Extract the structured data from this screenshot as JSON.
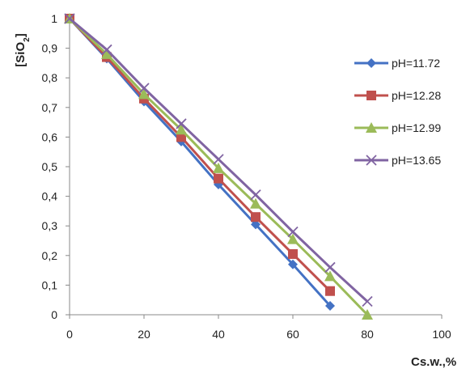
{
  "chart_data": {
    "type": "line",
    "title": "",
    "ylabel": "[SiO",
    "ylabel_sub": "2",
    "ylabel_close": "]",
    "xlabel": "Cs.w.,%",
    "xlim": [
      0,
      100
    ],
    "ylim": [
      0,
      1
    ],
    "x_ticks": [
      "0",
      "20",
      "40",
      "60",
      "80",
      "100"
    ],
    "y_ticks": [
      "0",
      "0,1",
      "0,2",
      "0,3",
      "0,4",
      "0,5",
      "0,6",
      "0,7",
      "0,8",
      "0,9",
      "1"
    ],
    "grid": false,
    "legend_position": "right",
    "series": [
      {
        "name": "pH=11.72",
        "color": "#4472C4",
        "marker": "diamond",
        "x": [
          0,
          10,
          20,
          30,
          40,
          50,
          60,
          70
        ],
        "y": [
          1.0,
          0.865,
          0.72,
          0.585,
          0.44,
          0.305,
          0.17,
          0.03
        ]
      },
      {
        "name": "pH=12.28",
        "color": "#C0504D",
        "marker": "square",
        "x": [
          0,
          10,
          20,
          30,
          40,
          50,
          60,
          70
        ],
        "y": [
          1.0,
          0.87,
          0.73,
          0.6,
          0.46,
          0.33,
          0.205,
          0.08
        ]
      },
      {
        "name": "pH=12.99",
        "color": "#9BBB59",
        "marker": "triangle",
        "x": [
          0,
          10,
          20,
          30,
          40,
          50,
          60,
          70,
          80
        ],
        "y": [
          1.0,
          0.88,
          0.745,
          0.625,
          0.495,
          0.375,
          0.255,
          0.13,
          0.0
        ]
      },
      {
        "name": "pH=13.65",
        "color": "#8064A2",
        "marker": "x",
        "x": [
          0,
          10,
          20,
          30,
          40,
          50,
          60,
          70,
          80
        ],
        "y": [
          1.0,
          0.895,
          0.765,
          0.645,
          0.525,
          0.405,
          0.28,
          0.16,
          0.045
        ]
      }
    ]
  }
}
